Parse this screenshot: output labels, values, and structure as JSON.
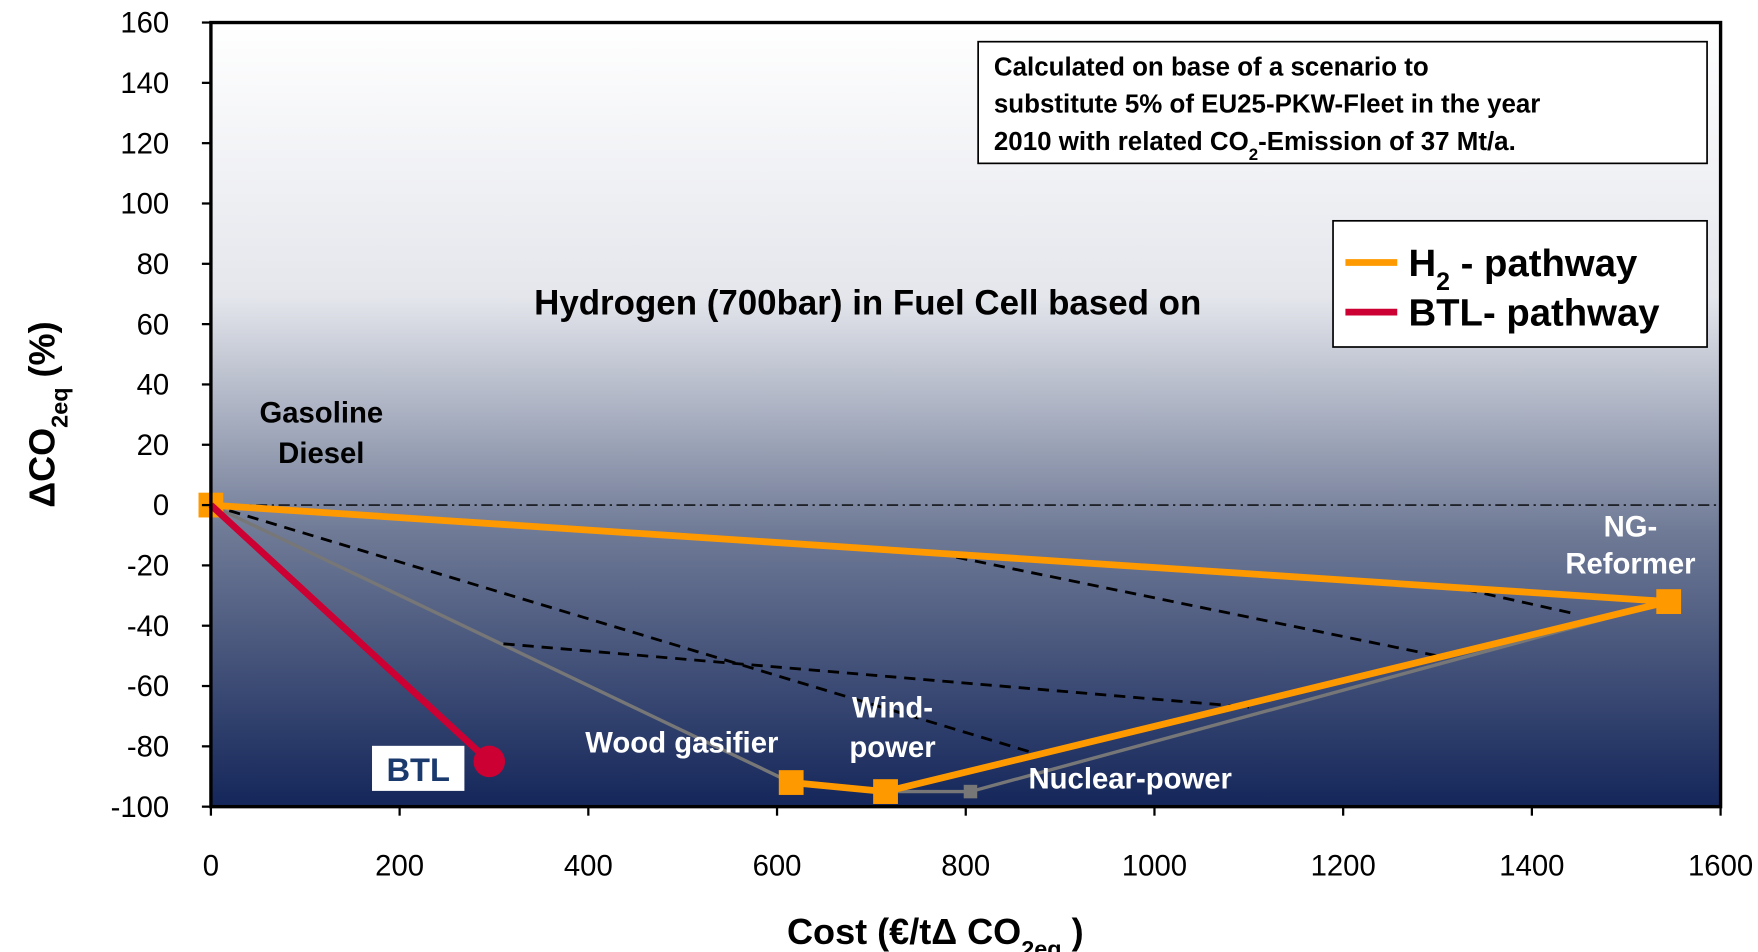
{
  "chart_data": {
    "type": "line",
    "annotation_title": "Hydrogen (700bar) in Fuel Cell based on",
    "note": [
      "Calculated on base of a scenario to",
      "substitute 5% of EU25-PKW-Fleet in the  year",
      "2010 with related CO",
      "2",
      "-Emission of 37 Mt/a."
    ],
    "xlabel": [
      "Cost (€/tΔ CO",
      "2eq",
      " )"
    ],
    "ylabel": [
      "ΔCO",
      "2eq",
      "   (%)"
    ],
    "labels": {
      "gasoline": [
        "Gasoline",
        "Diesel"
      ],
      "ng": [
        "NG-",
        "Reformer"
      ],
      "wind": [
        "Wind-",
        "power"
      ],
      "wood": "Wood gasifier",
      "nuclear": "Nuclear-power",
      "btl": "BTL"
    },
    "xlim": [
      0,
      1600
    ],
    "xticks": [
      0,
      200,
      400,
      600,
      800,
      1000,
      1200,
      1400,
      1600
    ],
    "ylim": [
      -100,
      160
    ],
    "yticks": [
      -100,
      -80,
      -60,
      -40,
      -20,
      0,
      20,
      40,
      60,
      80,
      100,
      120,
      140,
      160
    ],
    "grid": false,
    "legend": "upper right",
    "series": [
      {
        "name": [
          "H",
          "2",
          " - pathway"
        ],
        "color": "#ff9900",
        "marker": "square",
        "x": [
          0,
          1545,
          715,
          615
        ],
        "values": [
          0,
          -32,
          -95,
          -92
        ]
      },
      {
        "name": [
          "BTL- pathway"
        ],
        "color": "#cc0033",
        "marker": "circle-end",
        "x": [
          0,
          295
        ],
        "values": [
          0,
          -85
        ]
      }
    ],
    "other_lines": [
      {
        "color": "#777777",
        "style": "solid",
        "marker": "small-square",
        "x": [
          0,
          615,
          715,
          805,
          1545
        ],
        "values": [
          0,
          -92,
          -95,
          -95,
          -32
        ]
      },
      {
        "color": "#000000",
        "style": "dashed",
        "x": [
          0,
          870
        ],
        "values": [
          0,
          -82
        ]
      },
      {
        "color": "#000000",
        "style": "dashed",
        "x": [
          310,
          1100
        ],
        "values": [
          -46,
          -67
        ]
      },
      {
        "color": "#000000",
        "style": "dashed",
        "x": [
          770,
          1300
        ],
        "values": [
          -16,
          -50
        ]
      },
      {
        "color": "#000000",
        "style": "dashed",
        "x": [
          1330,
          1445
        ],
        "values": [
          -28,
          -36
        ]
      },
      {
        "color": "#000000",
        "style": "dashdot",
        "x": [
          0,
          1600
        ],
        "values": [
          0,
          0
        ]
      }
    ]
  }
}
